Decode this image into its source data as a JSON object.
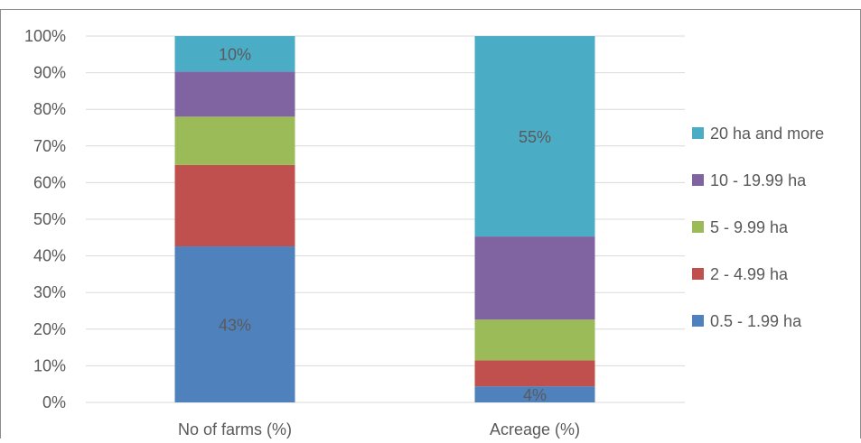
{
  "chart_data": {
    "type": "bar",
    "stacked": true,
    "percent_scale": true,
    "title": "",
    "xlabel": "",
    "ylabel": "",
    "ylim": [
      0,
      100
    ],
    "y_ticks": [
      "0%",
      "10%",
      "20%",
      "30%",
      "40%",
      "50%",
      "60%",
      "70%",
      "80%",
      "90%",
      "100%"
    ],
    "grid": true,
    "legend_position": "right",
    "categories": [
      "No of farms (%)",
      "Acreage (%)"
    ],
    "series": [
      {
        "name": "0.5 - 1.99 ha",
        "color": "#4f81bd",
        "values": [
          42.6,
          4.4
        ]
      },
      {
        "name": "2 - 4.99 ha",
        "color": "#c0504d",
        "values": [
          22.2,
          7.1
        ]
      },
      {
        "name": "5 - 9.99 ha",
        "color": "#9bbb59",
        "values": [
          13.2,
          11.1
        ]
      },
      {
        "name": "10 - 19.99 ha",
        "color": "#8064a2",
        "values": [
          12.3,
          22.7
        ]
      },
      {
        "name": "20 ha and more",
        "color": "#4bacc6",
        "values": [
          9.7,
          54.7
        ]
      }
    ],
    "data_labels": [
      {
        "series": 0,
        "category": 0,
        "text": "43%"
      },
      {
        "series": 4,
        "category": 0,
        "text": "10%"
      },
      {
        "series": 0,
        "category": 1,
        "text": "4%"
      },
      {
        "series": 4,
        "category": 1,
        "text": "55%"
      }
    ]
  }
}
